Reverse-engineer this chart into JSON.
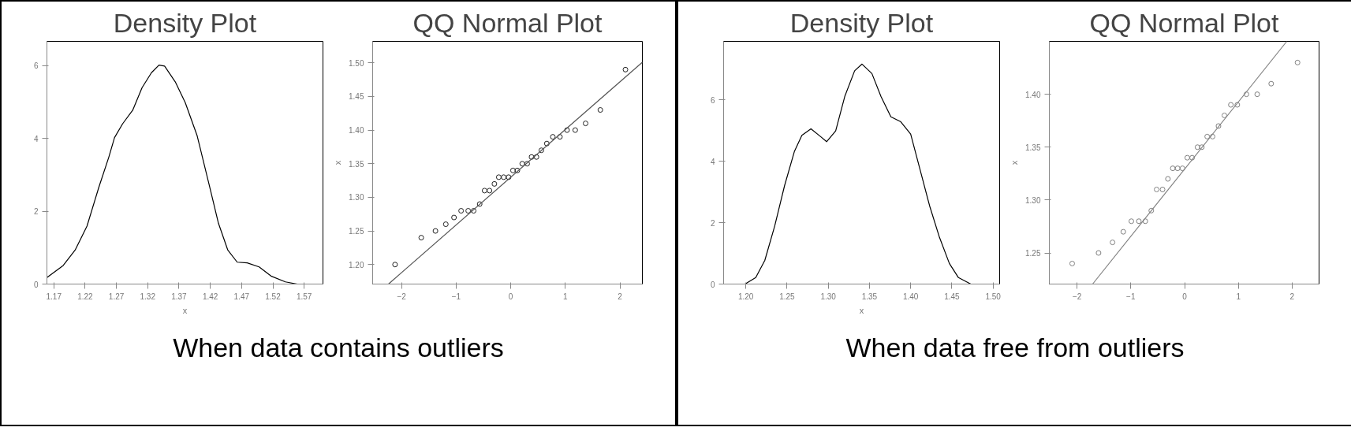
{
  "chart_data": [
    {
      "type": "line",
      "title": "Density Plot",
      "xlabel": "x",
      "xlim": [
        1.159,
        1.6
      ],
      "ylim": [
        0,
        6.66
      ],
      "xticks": [
        1.17,
        1.22,
        1.27,
        1.32,
        1.37,
        1.42,
        1.47,
        1.52,
        1.57
      ],
      "yticks": [
        0,
        2,
        4,
        6
      ],
      "grid": false,
      "annotations": [
        "When data contains outliers"
      ],
      "series": [
        {
          "color": "#000000",
          "x": [
            1.159,
            1.185,
            1.204,
            1.223,
            1.242,
            1.258,
            1.267,
            1.28,
            1.296,
            1.311,
            1.326,
            1.338,
            1.347,
            1.364,
            1.38,
            1.399,
            1.418,
            1.433,
            1.448,
            1.463,
            1.479,
            1.498,
            1.517,
            1.54,
            1.559
          ],
          "values": [
            0.18,
            0.51,
            0.93,
            1.59,
            2.66,
            3.49,
            4.02,
            4.4,
            4.77,
            5.39,
            5.8,
            6.01,
            5.98,
            5.55,
            4.98,
            4.07,
            2.74,
            1.67,
            0.93,
            0.6,
            0.58,
            0.47,
            0.22,
            0.06,
            0.0
          ]
        }
      ]
    },
    {
      "type": "scatter",
      "title": "QQ Normal Plot",
      "ylabel": "x",
      "xlim": [
        -2.53,
        2.41
      ],
      "ylim": [
        1.171,
        1.532
      ],
      "xticks": [
        -2,
        -1,
        0,
        1,
        2
      ],
      "yticks": [
        {
          "value": 1.2,
          "label": "1.20"
        },
        {
          "value": 1.25,
          "label": "1.25"
        },
        {
          "value": 1.3,
          "label": "1.30"
        },
        {
          "value": 1.35,
          "label": "1.35"
        },
        {
          "value": 1.4,
          "label": "1.40"
        },
        {
          "value": 1.45,
          "label": "1.45"
        },
        {
          "value": 1.5,
          "label": "1.50"
        }
      ],
      "grid": false,
      "series": [
        {
          "type": "scatter",
          "marker": "circle",
          "color": "#222222",
          "x": [
            -2.12,
            -1.64,
            -1.38,
            -1.19,
            -1.04,
            -0.91,
            -0.78,
            -0.68,
            -0.57,
            -0.48,
            -0.39,
            -0.3,
            -0.22,
            -0.13,
            -0.04,
            0.04,
            0.12,
            0.21,
            0.3,
            0.38,
            0.47,
            0.56,
            0.66,
            0.77,
            0.9,
            1.03,
            1.18,
            1.37,
            1.64,
            2.1
          ],
          "values": [
            1.2,
            1.24,
            1.25,
            1.26,
            1.27,
            1.28,
            1.28,
            1.28,
            1.29,
            1.31,
            1.31,
            1.32,
            1.33,
            1.33,
            1.33,
            1.34,
            1.34,
            1.35,
            1.35,
            1.36,
            1.36,
            1.37,
            1.38,
            1.39,
            1.39,
            1.4,
            1.4,
            1.41,
            1.43,
            1.49
          ]
        },
        {
          "type": "line",
          "marker": "none",
          "color": "#555555",
          "x": [
            -2.24,
            2.41
          ],
          "values": [
            1.171,
            1.501
          ]
        }
      ]
    },
    {
      "type": "line",
      "title": "Density Plot",
      "xlabel": "x",
      "xlim": [
        1.173,
        1.508
      ],
      "ylim": [
        0,
        7.91
      ],
      "xticks": [
        {
          "value": 1.2,
          "label": "1.20"
        },
        {
          "value": 1.25,
          "label": "1.25"
        },
        {
          "value": 1.3,
          "label": "1.30"
        },
        {
          "value": 1.35,
          "label": "1.35"
        },
        {
          "value": 1.4,
          "label": "1.40"
        },
        {
          "value": 1.45,
          "label": "1.45"
        },
        {
          "value": 1.5,
          "label": "1.50"
        }
      ],
      "yticks": [
        0,
        2,
        4,
        6
      ],
      "grid": false,
      "annotations": [
        "When data free from outliers"
      ],
      "series": [
        {
          "color": "#000000",
          "x": [
            1.199,
            1.212,
            1.223,
            1.235,
            1.247,
            1.259,
            1.268,
            1.279,
            1.291,
            1.298,
            1.309,
            1.32,
            1.332,
            1.341,
            1.353,
            1.364,
            1.376,
            1.388,
            1.4,
            1.411,
            1.423,
            1.435,
            1.447,
            1.458,
            1.473
          ],
          "values": [
            0,
            0.21,
            0.77,
            1.89,
            3.21,
            4.33,
            4.85,
            5.06,
            4.8,
            4.64,
            4.99,
            6.11,
            6.95,
            7.17,
            6.86,
            6.11,
            5.45,
            5.29,
            4.89,
            3.77,
            2.55,
            1.52,
            0.67,
            0.21,
            0
          ]
        }
      ]
    },
    {
      "type": "scatter",
      "title": "QQ Normal Plot",
      "ylabel": "x",
      "xlim": [
        -2.515,
        2.5
      ],
      "ylim": [
        1.2206,
        1.45
      ],
      "xticks": [
        -2,
        -1,
        0,
        1,
        2
      ],
      "yticks": [
        1.25,
        {
          "value": 1.3,
          "label": "1.30"
        },
        1.35,
        {
          "value": 1.4,
          "label": "1.40"
        }
      ],
      "grid": false,
      "series": [
        {
          "type": "scatter",
          "marker": "circle",
          "color": "#808080",
          "x": [
            -2.09,
            -1.6,
            -1.34,
            -1.14,
            -0.99,
            -0.85,
            -0.73,
            -0.62,
            -0.52,
            -0.41,
            -0.31,
            -0.22,
            -0.13,
            -0.04,
            0.05,
            0.14,
            0.24,
            0.32,
            0.42,
            0.52,
            0.63,
            0.74,
            0.86,
            0.98,
            1.15,
            1.35,
            1.61,
            2.1
          ],
          "values": [
            1.24,
            1.25,
            1.26,
            1.27,
            1.28,
            1.28,
            1.28,
            1.29,
            1.31,
            1.31,
            1.32,
            1.33,
            1.33,
            1.33,
            1.34,
            1.34,
            1.35,
            1.35,
            1.36,
            1.36,
            1.37,
            1.38,
            1.39,
            1.39,
            1.4,
            1.4,
            1.41,
            1.43
          ]
        },
        {
          "type": "line",
          "marker": "none",
          "color": "#808080",
          "x": [
            -1.71,
            1.9
          ],
          "values": [
            1.2206,
            1.45
          ]
        }
      ]
    }
  ]
}
